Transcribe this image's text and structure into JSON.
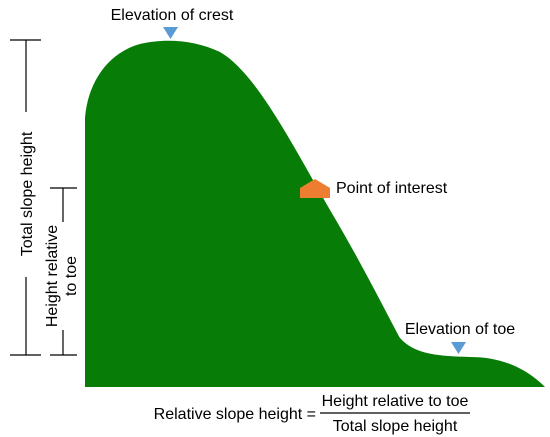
{
  "diagram": {
    "labels": {
      "crest": "Elevation of crest",
      "toe": "Elevation of toe",
      "point_of_interest": "Point of interest",
      "total_height": "Total slope height",
      "height_relative_line1": "Height relative",
      "height_relative_line2": "to toe"
    },
    "formula": {
      "lhs": "Relative slope height =",
      "numerator": "Height relative to toe",
      "denominator": "Total slope height"
    },
    "colors": {
      "slope_fill": "#077d07",
      "marker_blue": "#5b9bd5",
      "marker_orange": "#ed7d31",
      "lines": "#000000"
    }
  }
}
